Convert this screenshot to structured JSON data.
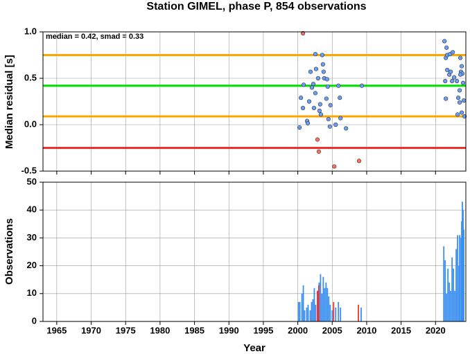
{
  "chart_data": [
    {
      "type": "scatter",
      "title": "Station GIMEL, phase P, 854 observations",
      "ylabel": "Median residual [s]",
      "annotation": "median = 0.42, smad = 0.33",
      "xlim": [
        1963,
        2024.4
      ],
      "xticks": [
        1965,
        1970,
        1975,
        1980,
        1985,
        1990,
        1995,
        2000,
        2005,
        2010,
        2015,
        2020
      ],
      "ylim": [
        -0.5,
        1.0
      ],
      "yticks": [
        {
          "value": -0.5,
          "label": "-0.5"
        },
        {
          "value": 0,
          "label": "0.0"
        },
        0.5,
        {
          "value": 1.0,
          "label": "1.0"
        }
      ],
      "grid": true,
      "hlines": [
        {
          "value": 0.75,
          "color": "#ffa500"
        },
        {
          "value": 0.42,
          "color": "#00e000"
        },
        {
          "value": 0.09,
          "color": "#ffa500"
        },
        {
          "value": -0.25,
          "color": "#f03030"
        }
      ],
      "series": [
        {
          "color": "#6a9ef5",
          "x": [
            2000.25,
            2000.45,
            2000.85,
            2000.75,
            2001.35,
            2001.45,
            2001.65,
            2001.85,
            2002.05,
            2002.25,
            2002.55,
            2002.35,
            2002.65,
            2002.55,
            2002.95,
            2003.15,
            2003.35,
            2003.25,
            2003.55,
            2003.65,
            2003.75,
            2003.85,
            2004.25,
            2004.15,
            2004.45,
            2004.35,
            2004.75,
            2004.65,
            2005.5,
            2005.9,
            2006.1,
            2006.2,
            2007.0,
            2009.3,
            2021.3,
            2021.6,
            2021.5,
            2021.7,
            2022.1,
            2022.5,
            2021.4,
            2021.5,
            2021.7,
            2022.0,
            2022.2,
            2022.4,
            2022.7,
            2023.1,
            2023.3,
            2023.2,
            2023.5,
            2023.6,
            2023.8,
            2023.7,
            2023.9,
            2024.0,
            2024.1,
            2024.2,
            2023.5,
            2023.8,
            2023.6
          ],
          "values": [
            -0.03,
            0.29,
            0.43,
            0.18,
            0.04,
            0.015,
            0.25,
            0.57,
            0.4,
            0.44,
            0.76,
            0.18,
            0.6,
            0.34,
            0.5,
            0.15,
            0.11,
            0.22,
            0.75,
            0.65,
            0.57,
            0.5,
            0.49,
            0.28,
            0.06,
            0.41,
            0.21,
            -0.02,
            0.0,
            0.42,
            0.29,
            0.07,
            -0.04,
            0.42,
            0.9,
            0.83,
            0.72,
            0.75,
            0.76,
            0.78,
            0.47,
            0.28,
            0.59,
            0.54,
            0.57,
            0.47,
            0.51,
            0.47,
            0.29,
            0.11,
            0.37,
            0.72,
            0.63,
            0.57,
            0.55,
            0.45,
            0.26,
            0.09,
            0.24,
            0.13,
            0.54
          ]
        },
        {
          "color": "#f87060",
          "x": [
            2000.75,
            2002.85,
            2003.05,
            2005.3,
            2008.9
          ],
          "values": [
            0.985,
            -0.16,
            -0.29,
            -0.45,
            -0.39
          ]
        }
      ]
    },
    {
      "type": "bar",
      "ylabel": "Observations",
      "xlabel": "Year",
      "xlim": [
        1963,
        2024.4
      ],
      "xticks": [
        1965,
        1970,
        1975,
        1980,
        1985,
        1990,
        1995,
        2000,
        2005,
        2010,
        2015,
        2020
      ],
      "ylim": [
        0,
        50
      ],
      "yticks": [
        0,
        10,
        20,
        30,
        40,
        50
      ],
      "grid": true,
      "series": [
        {
          "color": "#3a8ff0",
          "x": [
            2000.1,
            2000.3,
            2000.6,
            2000.8,
            2001.0,
            2001.3,
            2001.5,
            2001.8,
            2002.0,
            2002.2,
            2002.4,
            2002.6,
            2002.9,
            2003.1,
            2003.3,
            2003.5,
            2003.7,
            2003.9,
            2004.1,
            2004.3,
            2004.5,
            2004.7,
            2005.0,
            2005.5,
            2005.9,
            2006.2,
            2009.2,
            2021.2,
            2021.4,
            2021.6,
            2021.8,
            2022.0,
            2022.2,
            2022.4,
            2022.6,
            2022.8,
            2023.0,
            2023.2,
            2023.4,
            2023.5,
            2023.7,
            2023.8,
            2023.9,
            2024.0,
            2024.1
          ],
          "values": [
            7,
            7,
            10,
            13,
            4,
            5,
            6,
            4,
            7,
            8,
            12,
            6,
            11,
            14,
            17,
            10,
            16,
            12,
            14,
            12,
            9,
            6,
            4,
            5,
            7,
            5,
            5,
            27,
            22,
            10,
            19,
            14,
            11,
            23,
            19,
            11,
            26,
            31,
            20,
            31,
            30,
            36,
            43,
            40,
            33
          ]
        },
        {
          "color": "#f03030",
          "x": [
            2002.85,
            2003.05,
            2005.2,
            2008.8
          ],
          "values": [
            11,
            13,
            7,
            6
          ]
        }
      ]
    }
  ]
}
